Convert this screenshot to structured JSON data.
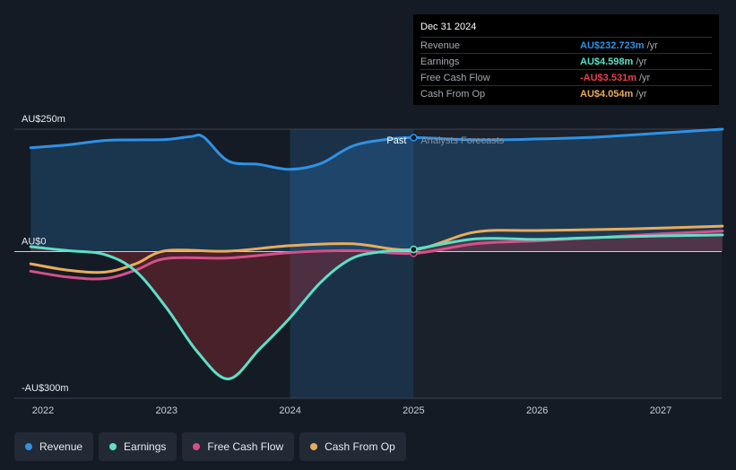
{
  "chart_data": {
    "type": "line",
    "x_ticks": [
      "2022",
      "2023",
      "2024",
      "2025",
      "2026",
      "2027"
    ],
    "y_labels": [
      {
        "text": "AU$250m",
        "value": 250
      },
      {
        "text": "AU$0",
        "value": 0
      },
      {
        "text": "-AU$300m",
        "value": -300
      }
    ],
    "ylim": [
      -300,
      250
    ],
    "divider_x": 2025.0,
    "past_label": "Past",
    "forecast_label": "Analysts Forecasts",
    "series": [
      {
        "name": "Revenue",
        "color": "#2f91e5",
        "points": [
          [
            2021.9,
            212
          ],
          [
            2022.2,
            218
          ],
          [
            2022.5,
            227
          ],
          [
            2022.75,
            228
          ],
          [
            2023.0,
            229
          ],
          [
            2023.2,
            235
          ],
          [
            2023.3,
            234
          ],
          [
            2023.5,
            185
          ],
          [
            2023.75,
            178
          ],
          [
            2024.0,
            168
          ],
          [
            2024.25,
            180
          ],
          [
            2024.5,
            215
          ],
          [
            2024.75,
            228
          ],
          [
            2025.0,
            232.7
          ],
          [
            2025.5,
            228
          ],
          [
            2026.0,
            230
          ],
          [
            2026.5,
            234
          ],
          [
            2027.0,
            242
          ],
          [
            2027.5,
            250
          ]
        ]
      },
      {
        "name": "Earnings",
        "color": "#5de0c6",
        "points": [
          [
            2021.9,
            10
          ],
          [
            2022.2,
            2
          ],
          [
            2022.5,
            -6
          ],
          [
            2022.75,
            -40
          ],
          [
            2023.0,
            -115
          ],
          [
            2023.25,
            -205
          ],
          [
            2023.5,
            -260
          ],
          [
            2023.75,
            -200
          ],
          [
            2024.0,
            -135
          ],
          [
            2024.25,
            -62
          ],
          [
            2024.5,
            -14
          ],
          [
            2024.75,
            0
          ],
          [
            2025.0,
            4.6
          ],
          [
            2025.5,
            26
          ],
          [
            2026.0,
            25
          ],
          [
            2026.5,
            29
          ],
          [
            2027.0,
            32
          ],
          [
            2027.5,
            34
          ]
        ]
      },
      {
        "name": "Free Cash Flow",
        "color": "#d4508a",
        "points": [
          [
            2021.9,
            -40
          ],
          [
            2022.2,
            -52
          ],
          [
            2022.5,
            -55
          ],
          [
            2022.75,
            -38
          ],
          [
            2023.0,
            -14
          ],
          [
            2023.5,
            -13
          ],
          [
            2024.0,
            -2
          ],
          [
            2024.5,
            2
          ],
          [
            2025.0,
            -3.5
          ],
          [
            2025.5,
            16
          ],
          [
            2026.0,
            22
          ],
          [
            2026.5,
            29
          ],
          [
            2027.0,
            36
          ],
          [
            2027.5,
            42
          ]
        ]
      },
      {
        "name": "Cash From Op",
        "color": "#e8ac5c",
        "points": [
          [
            2021.9,
            -25
          ],
          [
            2022.2,
            -38
          ],
          [
            2022.5,
            -42
          ],
          [
            2022.75,
            -25
          ],
          [
            2023.0,
            2
          ],
          [
            2023.5,
            1
          ],
          [
            2024.0,
            12
          ],
          [
            2024.5,
            16
          ],
          [
            2025.0,
            4.1
          ],
          [
            2025.5,
            40
          ],
          [
            2026.0,
            43
          ],
          [
            2026.5,
            45
          ],
          [
            2027.0,
            48
          ],
          [
            2027.5,
            52
          ]
        ]
      }
    ]
  },
  "tooltip": {
    "date": "Dec 31 2024",
    "rows": [
      {
        "label": "Revenue",
        "value": "AU$232.723m",
        "unit": "/yr",
        "color": "#2f91e5"
      },
      {
        "label": "Earnings",
        "value": "AU$4.598m",
        "unit": "/yr",
        "color": "#5de0c6"
      },
      {
        "label": "Free Cash Flow",
        "value": "-AU$3.531m",
        "unit": "/yr",
        "color": "#e8414b"
      },
      {
        "label": "Cash From Op",
        "value": "AU$4.054m",
        "unit": "/yr",
        "color": "#e8ac5c"
      }
    ]
  },
  "legend": [
    {
      "label": "Revenue",
      "color": "#2f91e5"
    },
    {
      "label": "Earnings",
      "color": "#5de0c6"
    },
    {
      "label": "Free Cash Flow",
      "color": "#d4508a"
    },
    {
      "label": "Cash From Op",
      "color": "#e8ac5c"
    }
  ]
}
